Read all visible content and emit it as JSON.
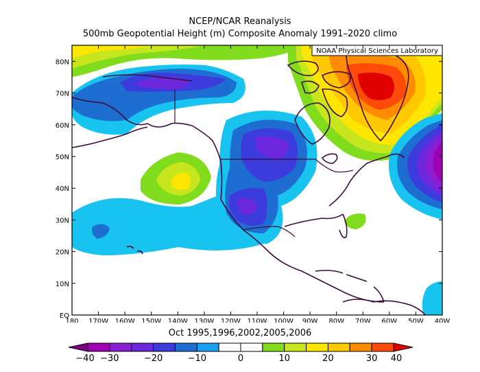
{
  "title": "NCEP/NCAR Reanalysis",
  "subtitle": "500mb Geopotential Height (m) Composite Anomaly 1991–2020 climo",
  "attribution": "NOAA Physical Sciences Laboratory",
  "date_label": "Oct 1995,1996,2002,2005,2006",
  "lat_labels": [
    "EQ",
    "10N",
    "20N",
    "30N",
    "40N",
    "50N",
    "60N",
    "70N",
    "80N"
  ],
  "lon_labels": [
    "180",
    "170W",
    "160W",
    "150W",
    "140W",
    "130W",
    "120W",
    "110W",
    "100W",
    "90W",
    "80W",
    "70W",
    "60W",
    "50W",
    "40W"
  ],
  "colorbar": {
    "labels": [
      "−40",
      "−30",
      "−20",
      "−10",
      "0",
      "10",
      "20",
      "30",
      "40"
    ],
    "colors": [
      "#7a0082",
      "#a000b4",
      "#8c1ed2",
      "#6e28dc",
      "#3c3cdc",
      "#1e6ed2",
      "#19a0f0",
      "#ffffff",
      "#ffffff",
      "#82dc1e",
      "#c8e61e",
      "#ffe600",
      "#ffc800",
      "#ff8c00",
      "#ff4b0a",
      "#e10000"
    ]
  }
}
